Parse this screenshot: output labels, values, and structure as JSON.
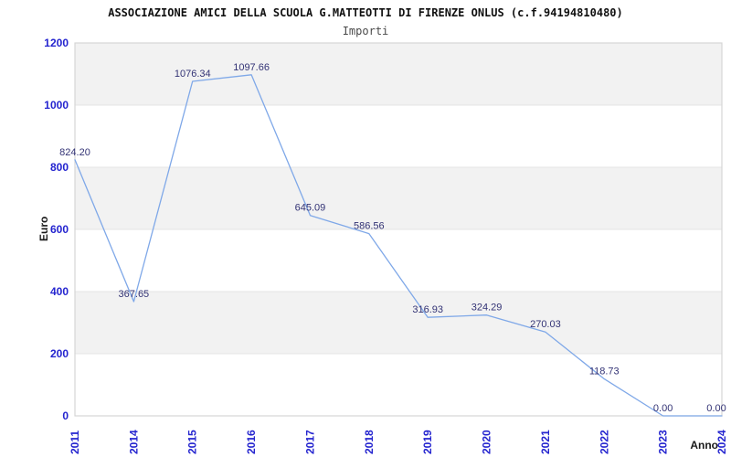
{
  "header": {
    "title": "ASSOCIAZIONE AMICI DELLA SCUOLA G.MATTEOTTI DI FIRENZE ONLUS (c.f.94194810480)",
    "subtitle": "Importi"
  },
  "chart_data": {
    "type": "line",
    "title": "ASSOCIAZIONE AMICI DELLA SCUOLA G.MATTEOTTI DI FIRENZE ONLUS (c.f.94194810480)",
    "subtitle": "Importi",
    "xlabel": "Anno",
    "ylabel": "Euro",
    "categories": [
      "2011",
      "2014",
      "2015",
      "2016",
      "2017",
      "2018",
      "2019",
      "2020",
      "2021",
      "2022",
      "2023",
      "2024"
    ],
    "values": [
      824.2,
      367.65,
      1076.34,
      1097.66,
      645.09,
      586.56,
      316.93,
      324.29,
      270.03,
      118.73,
      0.0,
      0.0
    ],
    "point_labels": [
      "824.20",
      "367.65",
      "1076.34",
      "1097.66",
      "645.09",
      "586.56",
      "316.93",
      "324.29",
      "270.03",
      "118.73",
      "0.00",
      "0.00"
    ],
    "ylim": [
      0,
      1200
    ],
    "yticks": [
      0,
      200,
      400,
      600,
      800,
      1000,
      1200
    ],
    "grid": "horizontal-bands",
    "legend_position": "none",
    "colors": {
      "line": "#7fa8e8",
      "band": "#f2f2f2",
      "gridline": "#e4e4e4",
      "plot_border": "#d6d6d6",
      "tick_label": "#2424cf",
      "data_label": "#333375",
      "title": "#111111",
      "subtitle": "#4a4a4a",
      "axis_title": "#1a1a1a",
      "background": "#ffffff"
    }
  }
}
